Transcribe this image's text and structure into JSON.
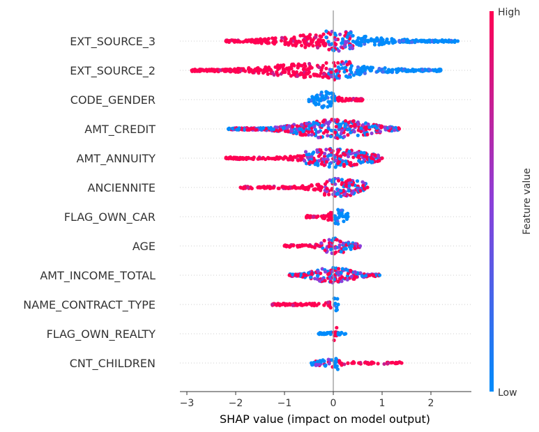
{
  "chart_data": {
    "type": "scatter",
    "subtype": "shap-beeswarm-summary",
    "xlabel": "SHAP value (impact on model output)",
    "xlim": [
      -3.15,
      2.85
    ],
    "xticks": [
      -3,
      -2,
      -1,
      0,
      1,
      2
    ],
    "xtick_labels": [
      "−3",
      "−2",
      "−1",
      "0",
      "1",
      "2"
    ],
    "grid": false,
    "zero_line": 0,
    "colorbar": {
      "title": "Feature value",
      "high_label": "High",
      "low_label": "Low",
      "high_color": "#ff0052",
      "mid_color": "#8c3fd9",
      "low_color": "#008bfb",
      "placement": "right"
    },
    "features": [
      {
        "name": "EXT_SOURCE_3",
        "min": -2.2,
        "max": 2.55,
        "mode": 0.0,
        "width": 0.9,
        "segments": [
          [
            -2.2,
            -0.15,
            "high",
            0.75
          ],
          [
            -0.15,
            0.4,
            "mixed",
            1.0
          ],
          [
            0.4,
            2.55,
            "low",
            0.6
          ]
        ]
      },
      {
        "name": "EXT_SOURCE_2",
        "min": -2.9,
        "max": 2.2,
        "mode": -0.25,
        "width": 0.9,
        "segments": [
          [
            -2.9,
            -0.1,
            "high",
            0.75
          ],
          [
            -0.1,
            0.35,
            "mixed",
            1.0
          ],
          [
            0.35,
            2.2,
            "low",
            0.6
          ]
        ]
      },
      {
        "name": "CODE_GENDER",
        "min": -0.5,
        "max": 0.6,
        "mode": -0.15,
        "width": 0.75,
        "segments": [
          [
            -0.5,
            0.05,
            "low",
            1.0
          ],
          [
            0.08,
            0.6,
            "high",
            0.8
          ]
        ]
      },
      {
        "name": "AMT_CREDIT",
        "min": -2.15,
        "max": 1.35,
        "mode": 0.0,
        "width": 0.85,
        "segments": [
          [
            -2.15,
            1.35,
            "mixed",
            1.0
          ]
        ]
      },
      {
        "name": "AMT_ANNUITY",
        "min": -2.2,
        "max": 1.0,
        "mode": 0.0,
        "width": 0.85,
        "segments": [
          [
            -2.2,
            -0.6,
            "high",
            0.5
          ],
          [
            -0.6,
            1.0,
            "mixed",
            1.0
          ]
        ]
      },
      {
        "name": "ANCIENNITE",
        "min": -1.9,
        "max": 0.7,
        "mode": 0.1,
        "width": 0.8,
        "segments": [
          [
            -1.9,
            -0.2,
            "high",
            0.5
          ],
          [
            -0.2,
            0.7,
            "mixed",
            1.0
          ]
        ]
      },
      {
        "name": "FLAG_OWN_CAR",
        "min": -0.55,
        "max": 0.3,
        "mode": 0.08,
        "width": 0.7,
        "segments": [
          [
            -0.55,
            -0.02,
            "high",
            0.8
          ],
          [
            0.02,
            0.3,
            "low",
            1.0
          ]
        ]
      },
      {
        "name": "AGE",
        "min": -1.0,
        "max": 0.55,
        "mode": 0.0,
        "width": 0.7,
        "segments": [
          [
            -1.0,
            -0.25,
            "high",
            0.45
          ],
          [
            -0.25,
            0.55,
            "mixed",
            1.0
          ]
        ]
      },
      {
        "name": "AMT_INCOME_TOTAL",
        "min": -0.9,
        "max": 0.95,
        "mode": 0.0,
        "width": 0.7,
        "segments": [
          [
            -0.9,
            0.95,
            "mixed",
            1.0
          ]
        ]
      },
      {
        "name": "NAME_CONTRACT_TYPE",
        "min": -1.25,
        "max": 0.1,
        "mode": 0.05,
        "width": 0.6,
        "segments": [
          [
            -1.25,
            0.0,
            "high",
            0.55
          ],
          [
            0.0,
            0.1,
            "low",
            1.0
          ]
        ]
      },
      {
        "name": "FLAG_OWN_REALTY",
        "min": -0.3,
        "max": 0.25,
        "mode": 0.03,
        "width": 0.6,
        "segments": [
          [
            -0.3,
            0.0,
            "low",
            0.5
          ],
          [
            0.0,
            0.08,
            "high",
            1.0
          ],
          [
            0.08,
            0.25,
            "low",
            0.4
          ]
        ]
      },
      {
        "name": "CNT_CHILDREN",
        "min": -0.45,
        "max": 1.4,
        "mode": 0.0,
        "width": 0.6,
        "segments": [
          [
            -0.45,
            0.0,
            "mixed",
            0.6
          ],
          [
            0.0,
            0.1,
            "low",
            1.0
          ],
          [
            0.1,
            1.4,
            "high",
            0.35
          ]
        ]
      }
    ]
  }
}
